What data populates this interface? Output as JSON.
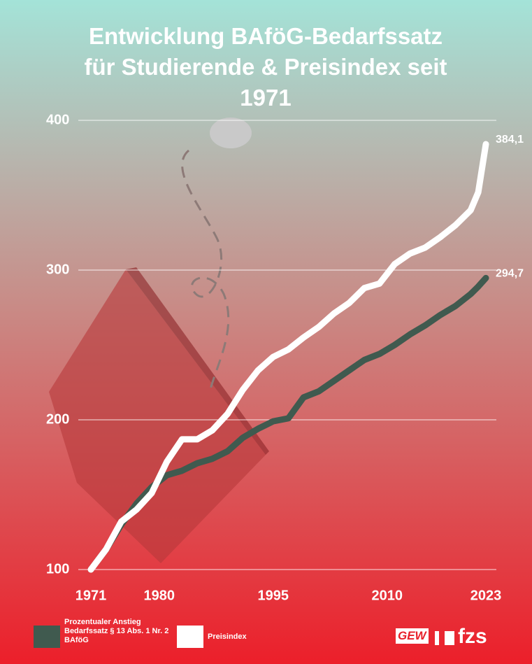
{
  "chart_data": {
    "type": "line",
    "title": "Entwicklung BAföG-Bedarfssatz für Studierende & Preisindex seit 1971",
    "x": [
      1971,
      1973,
      1975,
      1977,
      1979,
      1981,
      1983,
      1985,
      1987,
      1989,
      1991,
      1993,
      1995,
      1997,
      1999,
      2001,
      2003,
      2005,
      2007,
      2009,
      2011,
      2013,
      2015,
      2017,
      2019,
      2021,
      2022,
      2023
    ],
    "series": [
      {
        "name": "Prozentualer Anstieg Bedarfssatz § 13 Abs. 1 Nr. 2 BAföG",
        "color": "#405a4f",
        "values": [
          100,
          113.5,
          130,
          144,
          155,
          163,
          166,
          171,
          174,
          179,
          188,
          194,
          199,
          201,
          215,
          219,
          226,
          233,
          240,
          244,
          250,
          257,
          263,
          270,
          276,
          284,
          289,
          294.7
        ],
        "value_labels": [
          null,
          null,
          null,
          null,
          null,
          null,
          null,
          null,
          null,
          null,
          null,
          null,
          null,
          null,
          null,
          null,
          null,
          null,
          null,
          null,
          null,
          null,
          null,
          null,
          null,
          null,
          null,
          "294,7"
        ]
      },
      {
        "name": "Preisindex",
        "color": "#ffffff",
        "values": [
          100,
          113.5,
          132,
          140,
          151,
          172,
          187,
          187,
          193,
          204,
          220,
          233,
          242,
          247,
          255,
          262,
          271,
          278,
          288,
          291,
          304,
          311,
          315,
          322,
          330,
          340,
          352,
          384.1
        ],
        "value_labels": [
          null,
          null,
          null,
          null,
          null,
          null,
          null,
          null,
          null,
          null,
          null,
          null,
          null,
          null,
          null,
          null,
          null,
          null,
          null,
          null,
          null,
          null,
          null,
          null,
          null,
          null,
          null,
          "384,1"
        ]
      }
    ],
    "xlim": [
      1971,
      2023
    ],
    "xticks": [
      1971,
      1980,
      1995,
      2010,
      2023
    ],
    "ylim": [
      100,
      400
    ],
    "yticks": [
      100,
      200,
      300,
      400
    ],
    "grid": true
  },
  "footer": {
    "logos": [
      "GEW",
      "fzs"
    ]
  }
}
